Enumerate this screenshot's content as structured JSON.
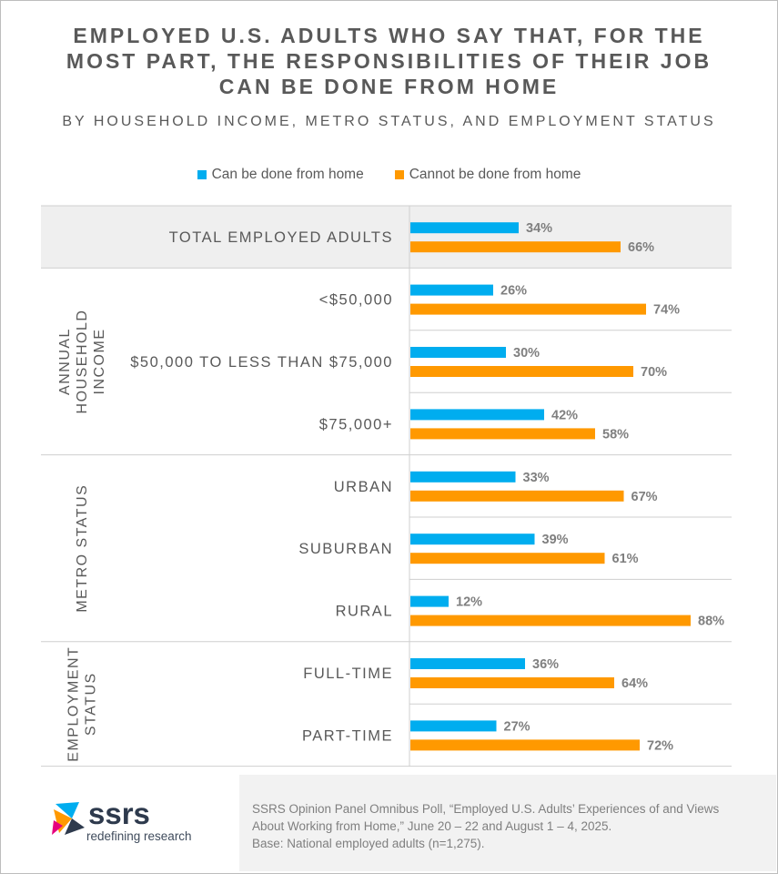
{
  "title_lines": [
    "EMPLOYED U.S. ADULTS WHO SAY THAT, FOR THE",
    "MOST PART, THE RESPONSIBILITIES OF THEIR JOB",
    "CAN BE DONE FROM HOME"
  ],
  "subtitle": "BY HOUSEHOLD INCOME, METRO STATUS, AND EMPLOYMENT STATUS",
  "colors": {
    "home": "#00adef",
    "not_home": "#ff9900",
    "shade": "#efefef",
    "grid": "#cfcfcf",
    "text": "#595959"
  },
  "chart_data": {
    "type": "bar",
    "orientation": "horizontal",
    "series": [
      {
        "name": "Can be done from home",
        "values": [
          34,
          26,
          30,
          42,
          33,
          39,
          12,
          36,
          27
        ]
      },
      {
        "name": "Cannot be done from home",
        "values": [
          66,
          74,
          70,
          58,
          67,
          61,
          88,
          64,
          72
        ]
      }
    ],
    "categories": [
      "TOTAL EMPLOYED ADULTS",
      "<$50,000",
      "$50,000 TO LESS THAN $75,000",
      "$75,000+",
      "URBAN",
      "SUBURBAN",
      "RURAL",
      "FULL-TIME",
      "PART-TIME"
    ],
    "groups": [
      {
        "label_lines": [],
        "start": 0,
        "end": 0
      },
      {
        "label_lines": [
          "ANNUAL",
          "HOUSEHOLD",
          "INCOME"
        ],
        "start": 1,
        "end": 3
      },
      {
        "label_lines": [
          "METRO STATUS"
        ],
        "start": 4,
        "end": 6
      },
      {
        "label_lines": [
          "EMPLOYMENT",
          "STATUS"
        ],
        "start": 7,
        "end": 8
      }
    ],
    "value_suffix": "%",
    "xlim": [
      0,
      100
    ],
    "legend_position": "top-center"
  },
  "source": {
    "lines": [
      "SSRS Opinion Panel Omnibus Poll, “Employed U.S. Adults’ Experiences of and Views",
      "About Working from Home,” June 20 – 22 and August 1 – 4, 2025.",
      "Base: National  employed adults (n=1,275)."
    ]
  },
  "logo": {
    "name": "ssrs",
    "tagline": "redefining research"
  }
}
